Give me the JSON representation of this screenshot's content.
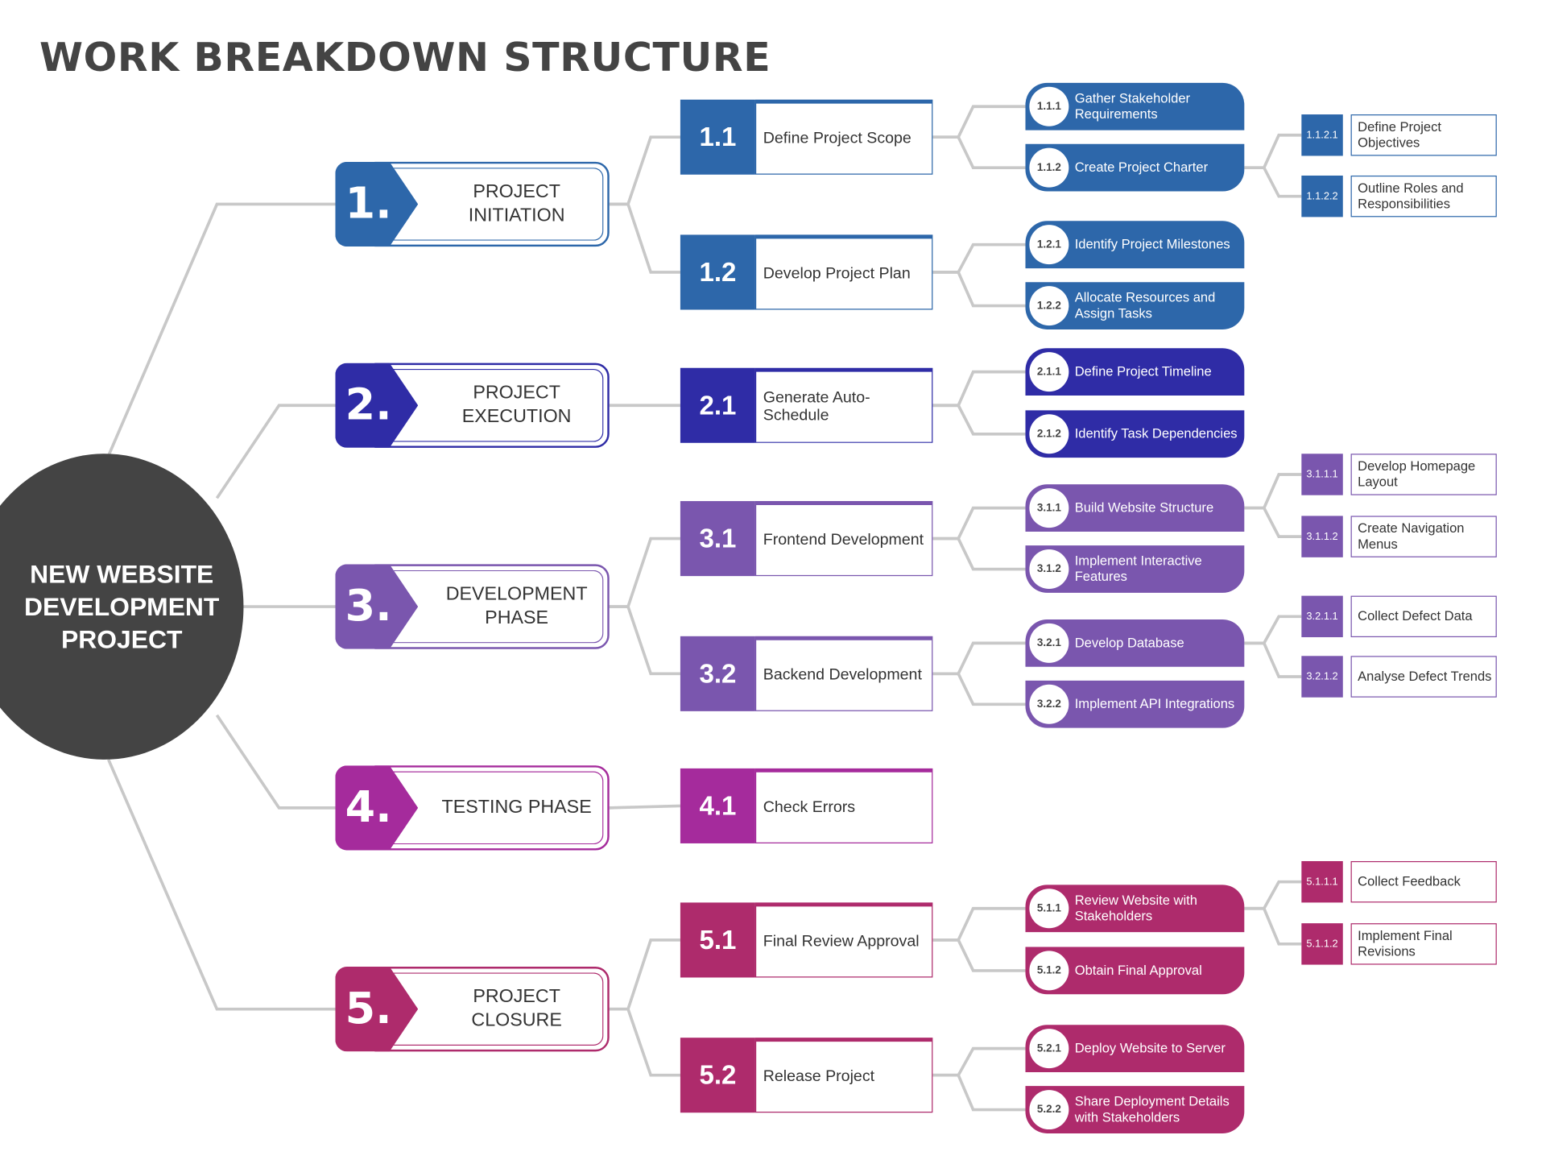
{
  "title": "WORK BREAKDOWN STRUCTURE",
  "root": "NEW WEBSITE DEVELOPMENT PROJECT",
  "colors": {
    "phase1": "#2D67AA",
    "phase2": "#2F2CA6",
    "phase3": "#7A56AE",
    "phase4": "#A52B9C",
    "phase5": "#AE2B6C",
    "root": "#444444",
    "connector": "#C8C8C8"
  },
  "phases": [
    {
      "num": "1.",
      "label": "PROJECT INITIATION",
      "children": [
        {
          "code": "1.1",
          "label": "Define Project Scope",
          "children": [
            {
              "code": "1.1.1",
              "label": "Gather Stakeholder Requirements",
              "children": []
            },
            {
              "code": "1.1.2",
              "label": "Create Project Charter",
              "children": [
                {
                  "code": "1.1.2.1",
                  "label": "Define Project Objectives"
                },
                {
                  "code": "1.1.2.2",
                  "label": "Outline Roles and Responsibilities"
                }
              ]
            }
          ]
        },
        {
          "code": "1.2",
          "label": "Develop Project Plan",
          "children": [
            {
              "code": "1.2.1",
              "label": "Identify Project Milestones",
              "children": []
            },
            {
              "code": "1.2.2",
              "label": "Allocate Resources and Assign Tasks",
              "children": []
            }
          ]
        }
      ]
    },
    {
      "num": "2.",
      "label": "PROJECT EXECUTION",
      "children": [
        {
          "code": "2.1",
          "label": "Generate Auto-Schedule",
          "children": [
            {
              "code": "2.1.1",
              "label": "Define Project Timeline",
              "children": []
            },
            {
              "code": "2.1.2",
              "label": "Identify Task Dependencies",
              "children": []
            }
          ]
        }
      ]
    },
    {
      "num": "3.",
      "label": "DEVELOPMENT PHASE",
      "children": [
        {
          "code": "3.1",
          "label": "Frontend Development",
          "children": [
            {
              "code": "3.1.1",
              "label": "Build Website Structure",
              "children": [
                {
                  "code": "3.1.1.1",
                  "label": "Develop Homepage Layout"
                },
                {
                  "code": "3.1.1.2",
                  "label": "Create Navigation Menus"
                }
              ]
            },
            {
              "code": "3.1.2",
              "label": "Implement Interactive Features",
              "children": []
            }
          ]
        },
        {
          "code": "3.2",
          "label": "Backend Development",
          "children": [
            {
              "code": "3.2.1",
              "label": "Develop Database",
              "children": [
                {
                  "code": "3.2.1.1",
                  "label": "Collect Defect Data"
                },
                {
                  "code": "3.2.1.2",
                  "label": "Analyse Defect Trends"
                }
              ]
            },
            {
              "code": "3.2.2",
              "label": "Implement API Integrations",
              "children": []
            }
          ]
        }
      ]
    },
    {
      "num": "4.",
      "label": "TESTING PHASE",
      "children": [
        {
          "code": "4.1",
          "label": "Check Errors",
          "children": []
        }
      ]
    },
    {
      "num": "5.",
      "label": "PROJECT CLOSURE",
      "children": [
        {
          "code": "5.1",
          "label": "Final Review Approval",
          "children": [
            {
              "code": "5.1.1",
              "label": "Review Website with Stakeholders",
              "children": [
                {
                  "code": "5.1.1.1",
                  "label": "Collect Feedback"
                },
                {
                  "code": "5.1.1.2",
                  "label": "Implement Final Revisions"
                }
              ]
            },
            {
              "code": "5.1.2",
              "label": "Obtain Final Approval",
              "children": []
            }
          ]
        },
        {
          "code": "5.2",
          "label": "Release Project",
          "children": [
            {
              "code": "5.2.1",
              "label": "Deploy Website to Server",
              "children": []
            },
            {
              "code": "5.2.2",
              "label": "Share Deployment Details with Stakeholders",
              "children": []
            }
          ]
        }
      ]
    }
  ]
}
